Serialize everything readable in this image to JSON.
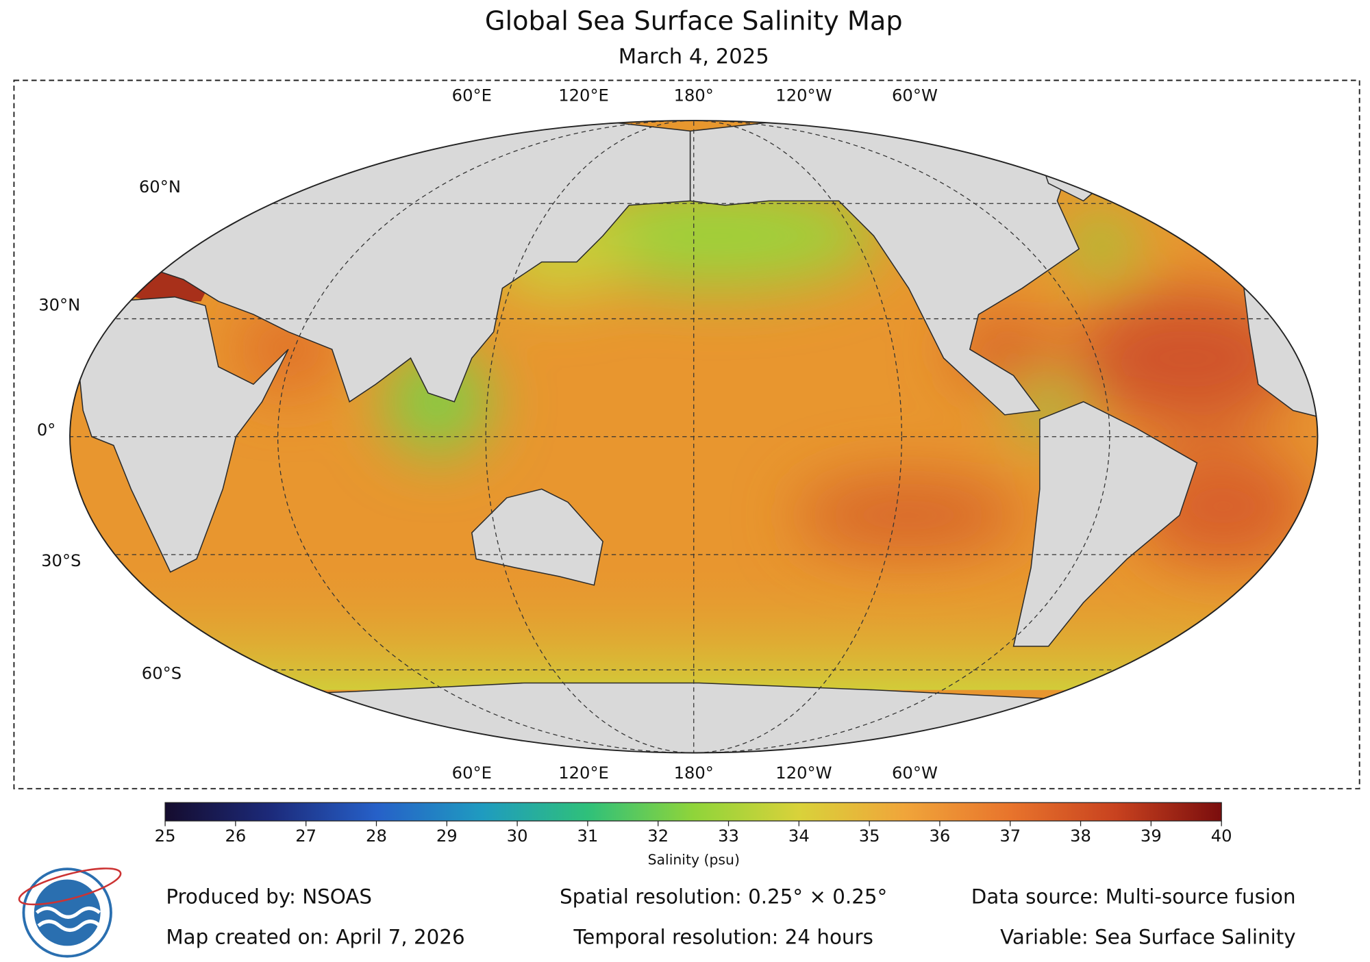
{
  "header": {
    "title": "Global Sea Surface Salinity Map",
    "subtitle": "March 4, 2025"
  },
  "map": {
    "lon_labels_top": [
      "60°E",
      "120°E",
      "180°",
      "120°W",
      "60°W"
    ],
    "lon_labels_bottom": [
      "60°E",
      "120°E",
      "180°",
      "120°W",
      "60°W"
    ],
    "lat_labels": [
      "60°N",
      "30°N",
      "0°",
      "30°S",
      "60°S"
    ]
  },
  "colorbar": {
    "range": [
      25,
      40
    ],
    "ticks": [
      25,
      26,
      27,
      28,
      29,
      30,
      31,
      32,
      33,
      34,
      35,
      36,
      37,
      38,
      39,
      40
    ],
    "label": "Salinity (psu)",
    "colors": [
      "#150c2e",
      "#1c2a7a",
      "#2660c8",
      "#1f9bc0",
      "#2fc07a",
      "#8fd43a",
      "#d9d23a",
      "#f0a53a",
      "#e8742c",
      "#c8421f",
      "#7a0d0d"
    ]
  },
  "footer": {
    "left": [
      "Produced by: NSOAS",
      "Map created on: April 7, 2026"
    ],
    "middle": [
      "Spatial resolution: 0.25° × 0.25°",
      "Temporal resolution: 24 hours"
    ],
    "right": [
      "Data source: Multi-source fusion",
      "Variable: Sea Surface Salinity"
    ]
  }
}
